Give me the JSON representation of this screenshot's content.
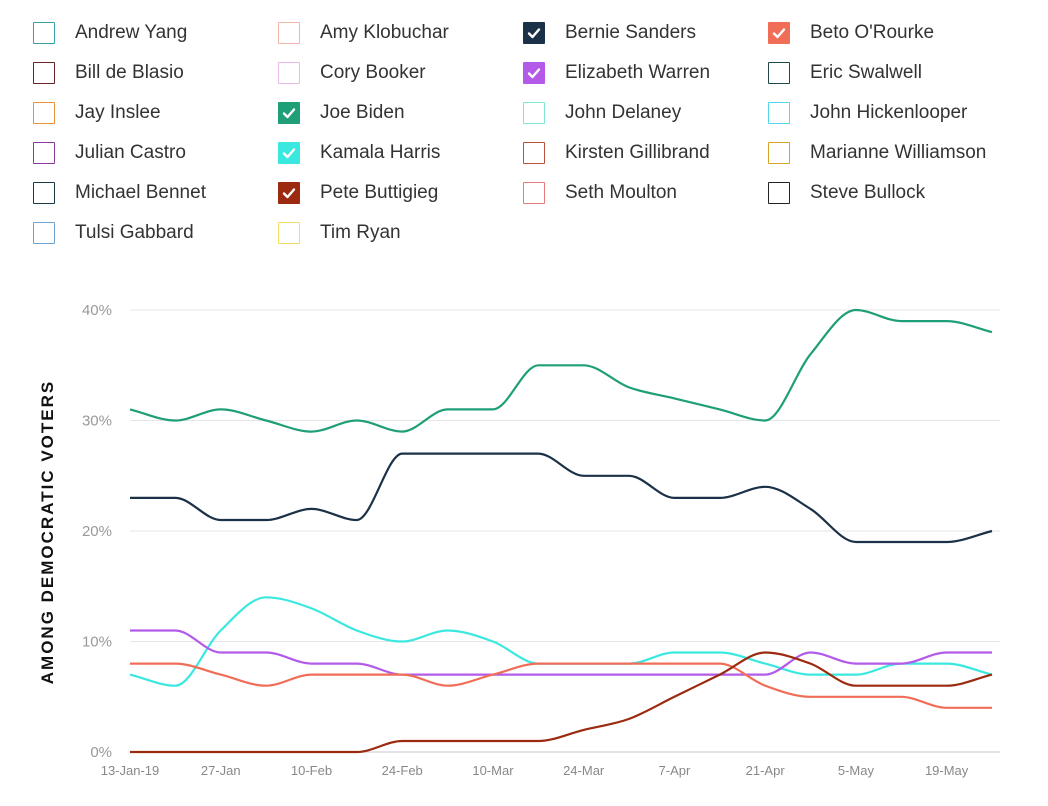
{
  "legend": [
    {
      "name": "Andrew Yang",
      "color": "#3aa0a3",
      "checked": false
    },
    {
      "name": "Amy Klobuchar",
      "color": "#f3b4aa",
      "checked": false
    },
    {
      "name": "Bernie Sanders",
      "color": "#1b3148",
      "checked": true
    },
    {
      "name": "Beto O'Rourke",
      "color": "#f06e58",
      "checked": true
    },
    {
      "name": "Bill de Blasio",
      "color": "#6b2323",
      "checked": false
    },
    {
      "name": "Cory Booker",
      "color": "#e8b8ea",
      "checked": false
    },
    {
      "name": "Elizabeth Warren",
      "color": "#b35ae8",
      "checked": true
    },
    {
      "name": "Eric Swalwell",
      "color": "#1d4a48",
      "checked": false
    },
    {
      "name": "Jay Inslee",
      "color": "#e8933c",
      "checked": false
    },
    {
      "name": "Joe Biden",
      "color": "#1f9f78",
      "checked": true
    },
    {
      "name": "John Delaney",
      "color": "#7fe6d6",
      "checked": false
    },
    {
      "name": "John Hickenlooper",
      "color": "#52d8ea",
      "checked": false
    },
    {
      "name": "Julian Castro",
      "color": "#8a3aa0",
      "checked": false
    },
    {
      "name": "Kamala Harris",
      "color": "#3be8e0",
      "checked": true
    },
    {
      "name": "Kirsten Gillibrand",
      "color": "#b8503a",
      "checked": false
    },
    {
      "name": "Marianne Williamson",
      "color": "#d4a428",
      "checked": false
    },
    {
      "name": "Michael Bennet",
      "color": "#1a3a4a",
      "checked": false
    },
    {
      "name": "Pete Buttigieg",
      "color": "#9b2a10",
      "checked": true
    },
    {
      "name": "Seth Moulton",
      "color": "#e57c7c",
      "checked": false
    },
    {
      "name": "Steve Bullock",
      "color": "#222222",
      "checked": false
    },
    {
      "name": "Tulsi Gabbard",
      "color": "#6fa3d8",
      "checked": false
    },
    {
      "name": "Tim Ryan",
      "color": "#f3dc6a",
      "checked": false
    }
  ],
  "chart_data": {
    "type": "line",
    "ylabel": "AMONG DEMOCRATIC VOTERS",
    "xlabel": "",
    "ylim": [
      0,
      40
    ],
    "yticks": [
      0,
      10,
      20,
      30,
      40
    ],
    "ytick_labels": [
      "0%",
      "10%",
      "20%",
      "30%",
      "40%"
    ],
    "x": [
      "13-Jan-19",
      "20-Jan-19",
      "27-Jan-19",
      "3-Feb-19",
      "10-Feb-19",
      "17-Feb-19",
      "24-Feb-19",
      "3-Mar-19",
      "10-Mar-19",
      "17-Mar-19",
      "24-Mar-19",
      "31-Mar-19",
      "7-Apr-19",
      "14-Apr-19",
      "21-Apr-19",
      "28-Apr-19",
      "5-May-19",
      "12-May-19",
      "19-May-19",
      "26-May-19"
    ],
    "xtick_labels": [
      "13-Jan-19",
      "27-Jan",
      "10-Feb",
      "24-Feb",
      "10-Mar",
      "24-Mar",
      "7-Apr",
      "21-Apr",
      "5-May",
      "19-May"
    ],
    "grid": true,
    "series": [
      {
        "name": "Joe Biden",
        "color": "#1f9f78",
        "values": [
          31,
          30,
          31,
          30,
          29,
          30,
          29,
          31,
          31,
          35,
          35,
          33,
          32,
          31,
          30,
          36,
          40,
          39,
          39,
          38
        ]
      },
      {
        "name": "Bernie Sanders",
        "color": "#1b3148",
        "values": [
          23,
          23,
          21,
          21,
          22,
          21,
          27,
          27,
          27,
          27,
          25,
          25,
          23,
          23,
          24,
          22,
          19,
          19,
          19,
          20
        ]
      },
      {
        "name": "Kamala Harris",
        "color": "#3be8e0",
        "values": [
          7,
          6,
          11,
          14,
          13,
          11,
          10,
          11,
          10,
          8,
          8,
          8,
          9,
          9,
          8,
          7,
          7,
          8,
          8,
          7
        ]
      },
      {
        "name": "Elizabeth Warren",
        "color": "#b35ae8",
        "values": [
          11,
          11,
          9,
          9,
          8,
          8,
          7,
          7,
          7,
          7,
          7,
          7,
          7,
          7,
          7,
          9,
          8,
          8,
          9,
          9
        ]
      },
      {
        "name": "Beto O'Rourke",
        "color": "#f06e58",
        "values": [
          8,
          8,
          7,
          6,
          7,
          7,
          7,
          6,
          7,
          8,
          8,
          8,
          8,
          8,
          6,
          5,
          5,
          5,
          4,
          4
        ]
      },
      {
        "name": "Pete Buttigieg",
        "color": "#9b2a10",
        "values": [
          0,
          0,
          0,
          0,
          0,
          0,
          1,
          1,
          1,
          1,
          2,
          3,
          5,
          7,
          9,
          8,
          6,
          6,
          6,
          7
        ]
      }
    ]
  }
}
